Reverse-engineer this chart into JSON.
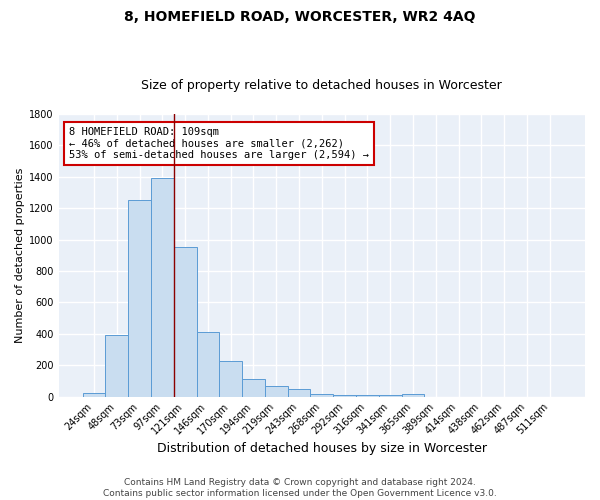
{
  "title1": "8, HOMEFIELD ROAD, WORCESTER, WR2 4AQ",
  "title2": "Size of property relative to detached houses in Worcester",
  "xlabel": "Distribution of detached houses by size in Worcester",
  "ylabel": "Number of detached properties",
  "categories": [
    "24sqm",
    "48sqm",
    "73sqm",
    "97sqm",
    "121sqm",
    "146sqm",
    "170sqm",
    "194sqm",
    "219sqm",
    "243sqm",
    "268sqm",
    "292sqm",
    "316sqm",
    "341sqm",
    "365sqm",
    "389sqm",
    "414sqm",
    "438sqm",
    "462sqm",
    "487sqm",
    "511sqm"
  ],
  "values": [
    25,
    390,
    1255,
    1390,
    955,
    410,
    228,
    115,
    65,
    47,
    18,
    12,
    10,
    8,
    20,
    0,
    0,
    0,
    0,
    0,
    0
  ],
  "bar_color": "#c9ddf0",
  "bar_edge_color": "#5b9bd5",
  "vline_color": "#8b0000",
  "annotation_text": "8 HOMEFIELD ROAD: 109sqm\n← 46% of detached houses are smaller (2,262)\n53% of semi-detached houses are larger (2,594) →",
  "annotation_box_color": "white",
  "annotation_box_edge": "#cc0000",
  "footer": "Contains HM Land Registry data © Crown copyright and database right 2024.\nContains public sector information licensed under the Open Government Licence v3.0.",
  "ylim": [
    0,
    1800
  ],
  "yticks": [
    0,
    200,
    400,
    600,
    800,
    1000,
    1200,
    1400,
    1600,
    1800
  ],
  "bg_color": "#eaf0f8",
  "grid_color": "white",
  "title1_fontsize": 10,
  "title2_fontsize": 9,
  "xlabel_fontsize": 9,
  "ylabel_fontsize": 8,
  "tick_fontsize": 7,
  "annotation_fontsize": 7.5,
  "footer_fontsize": 6.5
}
